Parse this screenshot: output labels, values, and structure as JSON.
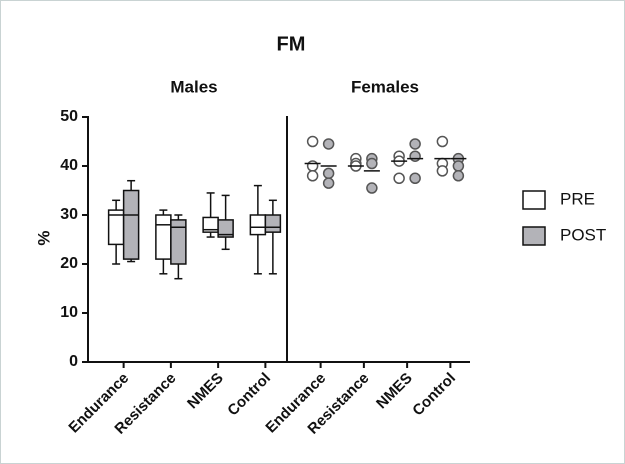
{
  "chart_data": [
    {
      "type": "box",
      "title": "FM",
      "subtitle": "Males",
      "y_label": "%",
      "categories": [
        "Endurance",
        "Resistance",
        "NMES",
        "Control"
      ],
      "ylim": [
        0,
        50
      ],
      "yticks": [
        0,
        10,
        20,
        30,
        40,
        50
      ],
      "series": [
        {
          "name": "PRE",
          "color": "#ffffff",
          "values": [
            {
              "min": 20,
              "q1": 24,
              "median": 30,
              "q3": 31,
              "max": 33
            },
            {
              "min": 18,
              "q1": 21,
              "median": 28,
              "q3": 30,
              "max": 31
            },
            {
              "min": 25.5,
              "q1": 26.5,
              "median": 27,
              "q3": 29.5,
              "max": 34.5
            },
            {
              "min": 18,
              "q1": 26,
              "median": 27.5,
              "q3": 30,
              "max": 36
            }
          ]
        },
        {
          "name": "POST",
          "color": "#b3b3b8",
          "values": [
            {
              "min": 20.5,
              "q1": 21,
              "median": 30,
              "q3": 35,
              "max": 37
            },
            {
              "min": 17,
              "q1": 20,
              "median": 27.5,
              "q3": 29,
              "max": 30
            },
            {
              "min": 23,
              "q1": 25.5,
              "median": 26,
              "q3": 29,
              "max": 34
            },
            {
              "min": 18,
              "q1": 26.5,
              "median": 27.5,
              "q3": 30,
              "max": 33
            }
          ]
        }
      ]
    },
    {
      "type": "scatter",
      "subtitle": "Females",
      "categories": [
        "Endurance",
        "Resistance",
        "NMES",
        "Control"
      ],
      "ylim": [
        0,
        50
      ],
      "series": [
        {
          "color": "#ffffff",
          "values": [
            [
              45,
              40,
              38
            ],
            [
              41.5,
              40.5,
              40
            ],
            [
              42,
              41,
              37.5
            ],
            [
              45,
              40.5,
              39
            ]
          ],
          "means": [
            40.5,
            40,
            41,
            41.5
          ]
        },
        {
          "color": "#b3b3b8",
          "values": [
            [
              44.5,
              38.5,
              36.5
            ],
            [
              41.5,
              40.5,
              35.5
            ],
            [
              44.5,
              42,
              37.5
            ],
            [
              41.5,
              40,
              38
            ]
          ],
          "means": [
            40,
            39,
            41.5,
            41.5
          ]
        }
      ]
    }
  ]
}
